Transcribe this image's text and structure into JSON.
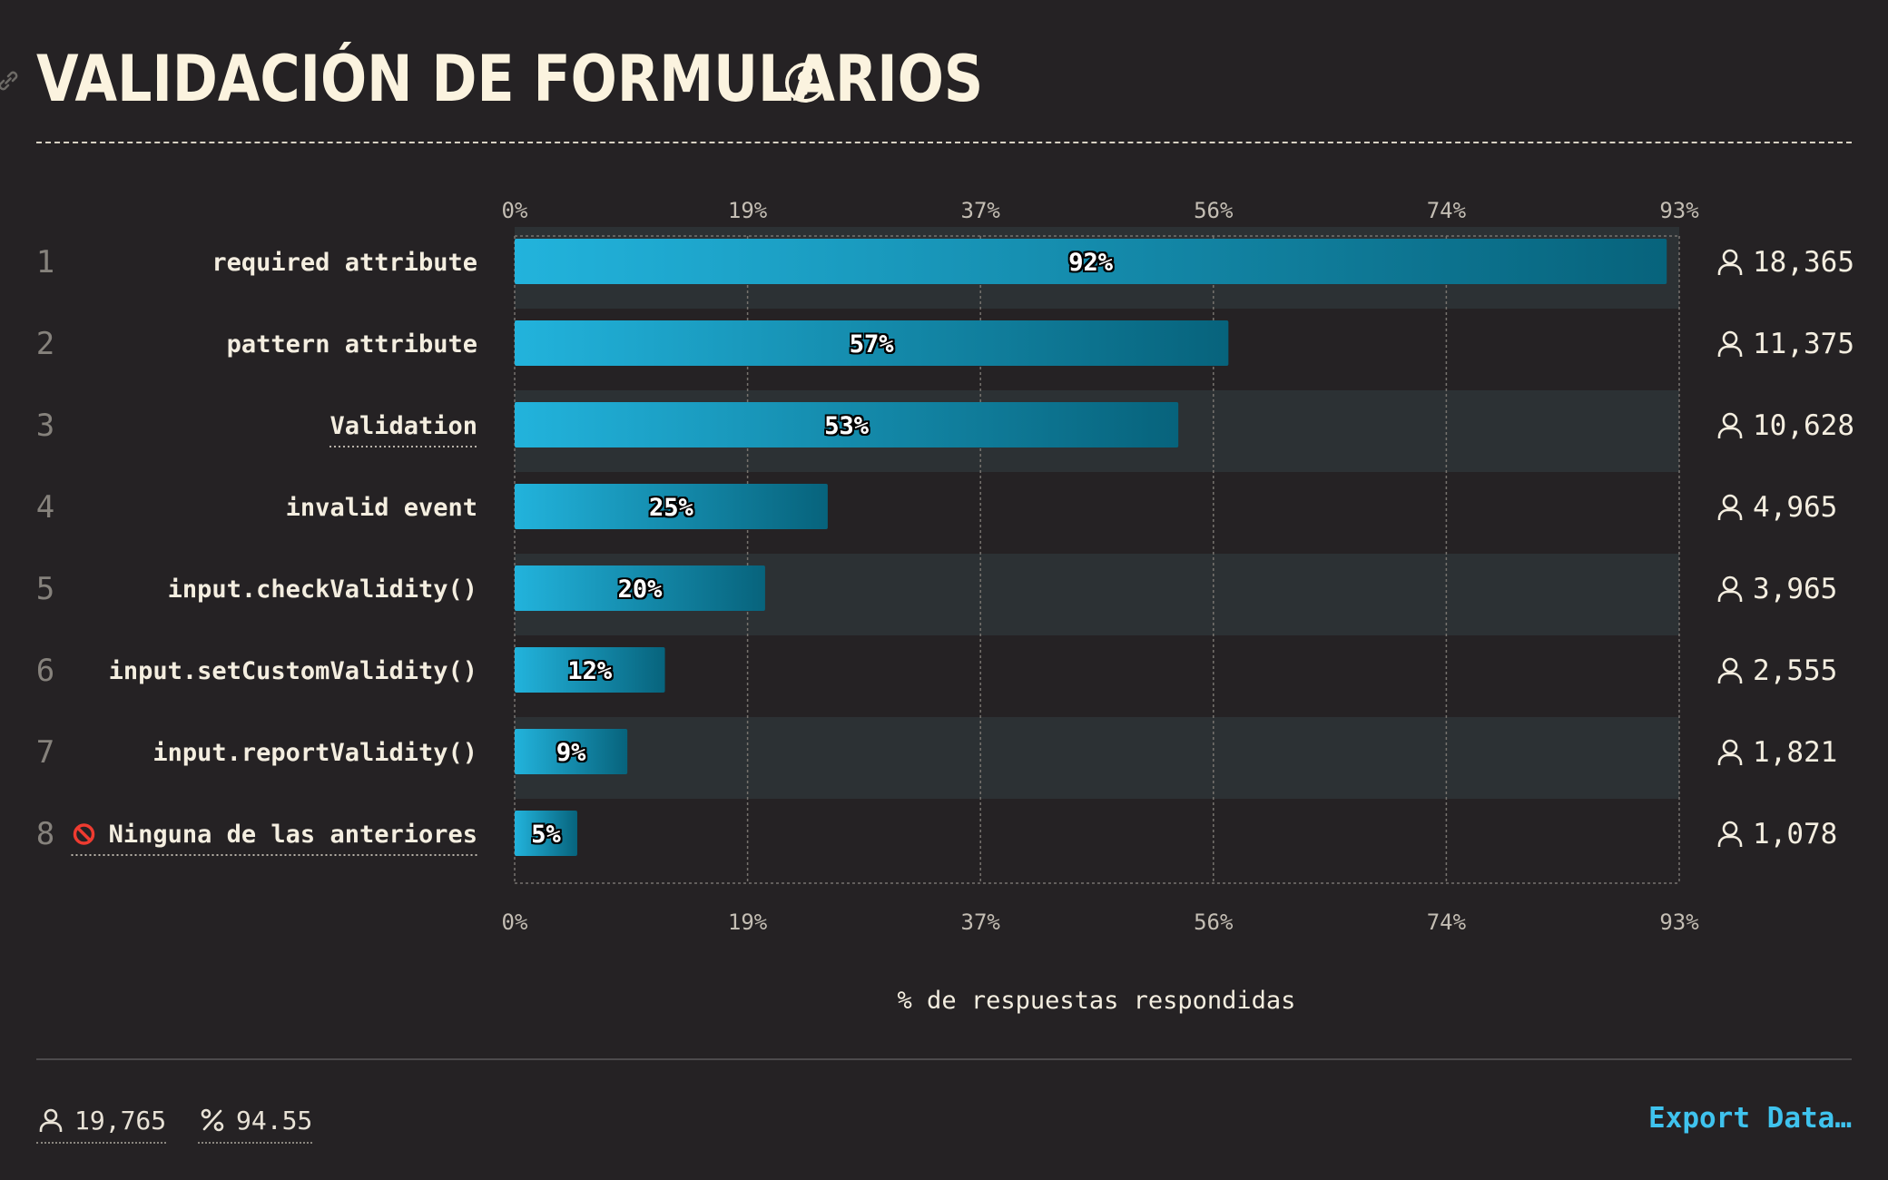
{
  "page": {
    "title": "VALIDACIÓN DE FORMULARIOS"
  },
  "footer": {
    "respondents": "19,765",
    "percentage": "94.55",
    "export_label": "Export Data…"
  },
  "colors": {
    "bar_start": "#22b3dc",
    "bar_end": "#07637c",
    "accent": "#3fc3ee",
    "stripe": "#2c3134",
    "background": "#252224"
  },
  "chart_data": {
    "type": "bar",
    "orientation": "horizontal",
    "xlabel": "% de respuestas respondidas",
    "xlim": [
      0,
      93
    ],
    "ticks": [
      "0%",
      "19%",
      "37%",
      "56%",
      "74%",
      "93%"
    ],
    "tick_values": [
      0,
      18.6,
      37.2,
      55.8,
      74.4,
      93
    ],
    "grid": true,
    "categories": [
      "required attribute",
      "pattern attribute",
      "Validation",
      "invalid event",
      "input.checkValidity()",
      "input.setCustomValidity()",
      "input.reportValidity()",
      "Ninguna de las anteriores"
    ],
    "ranks": [
      "1",
      "2",
      "3",
      "4",
      "5",
      "6",
      "7",
      "8"
    ],
    "values": [
      92,
      57,
      53,
      25,
      20,
      12,
      9,
      5
    ],
    "value_labels": [
      "92%",
      "57%",
      "53%",
      "25%",
      "20%",
      "12%",
      "9%",
      "5%"
    ],
    "counts": [
      "18,365",
      "11,375",
      "10,628",
      "4,965",
      "3,965",
      "2,555",
      "1,821",
      "1,078"
    ],
    "underlined": [
      false,
      false,
      true,
      false,
      false,
      false,
      false,
      true
    ],
    "prefix_icons": [
      "",
      "",
      "",
      "",
      "",
      "",
      "",
      "no-entry-icon"
    ],
    "series": [
      {
        "values": [
          92,
          57,
          53,
          25,
          20,
          12,
          9,
          5
        ]
      }
    ]
  }
}
